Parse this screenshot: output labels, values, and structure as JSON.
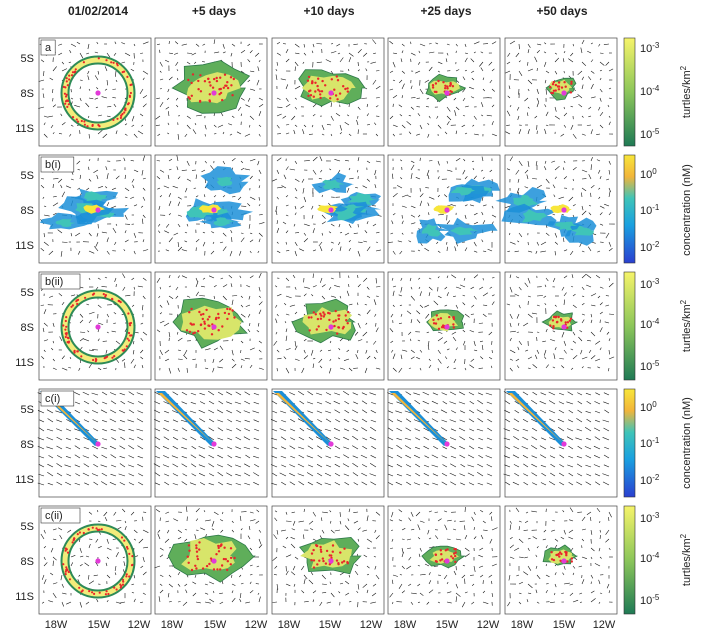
{
  "figure": {
    "columns": [
      "01/02/2014",
      "+5 days",
      "+10 days",
      "+25 days",
      "+50 days"
    ],
    "rows": [
      {
        "label": "a",
        "kind": "turtle"
      },
      {
        "label": "b(i)",
        "kind": "conc"
      },
      {
        "label": "b(ii)",
        "kind": "turtle"
      },
      {
        "label": "c(i)",
        "kind": "plume"
      },
      {
        "label": "c(ii)",
        "kind": "turtle"
      }
    ],
    "y_ticks": [
      "5S",
      "8S",
      "11S"
    ],
    "x_ticks": [
      "18W",
      "15W",
      "12W"
    ],
    "colorbars": {
      "turtle": {
        "label": "turtles/km",
        "sup": "2",
        "ticks": [
          {
            "base": "10",
            "exp": "-3"
          },
          {
            "base": "10",
            "exp": "-4"
          },
          {
            "base": "10",
            "exp": "-5"
          }
        ]
      },
      "conc": {
        "label": "concentration (nM)",
        "ticks": [
          {
            "base": "10",
            "exp": "0"
          },
          {
            "base": "10",
            "exp": "-1"
          },
          {
            "base": "10",
            "exp": "-2"
          }
        ]
      }
    },
    "colors": {
      "turtle_low": "#2e8b57",
      "turtle_high": "#f4f46a",
      "conc_low": "#1f5fd6",
      "conc_mid": "#21b6c9",
      "conc_high": "#f7e13a",
      "release_point": "#e23ad8",
      "turtle_dots": "#e8262b"
    }
  }
}
